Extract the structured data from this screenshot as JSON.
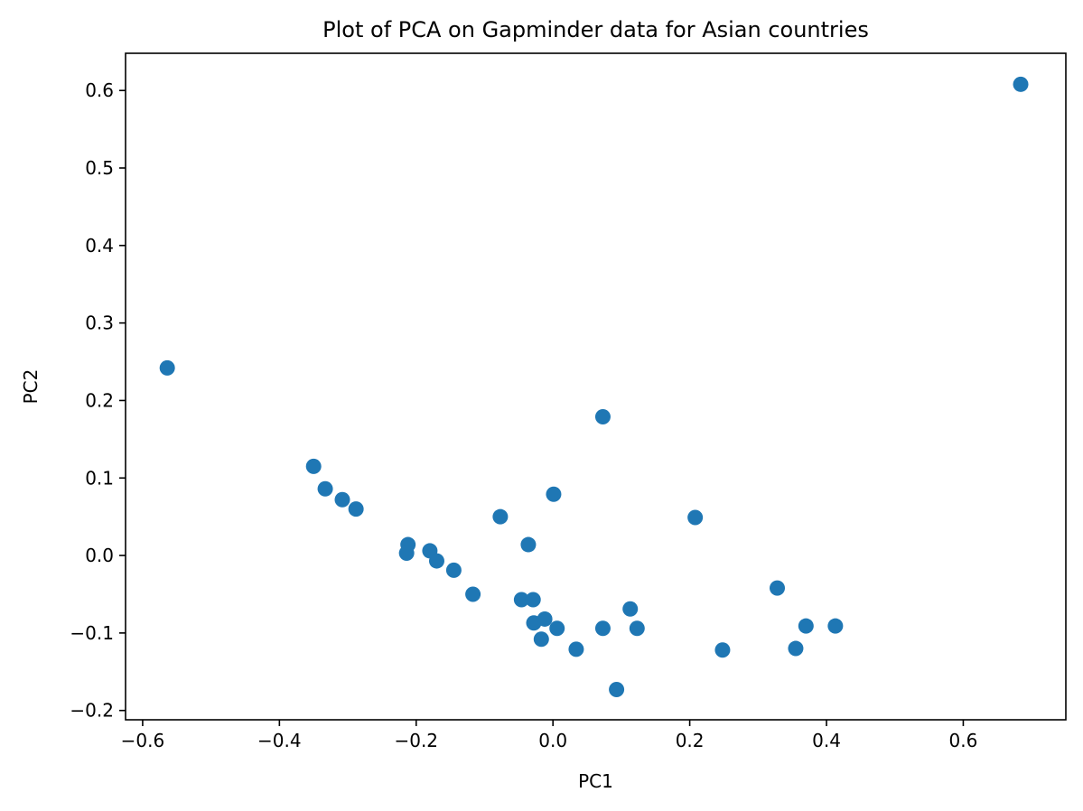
{
  "chart_data": {
    "type": "scatter",
    "title": "Plot of PCA on Gapminder data for Asian countries",
    "xlabel": "PC1",
    "ylabel": "PC2",
    "xlim": [
      -0.625,
      0.75
    ],
    "ylim": [
      -0.212,
      0.648
    ],
    "xticks": [
      -0.6,
      -0.4,
      -0.2,
      0.0,
      0.2,
      0.4,
      0.6
    ],
    "xtick_labels": [
      "−0.6",
      "−0.4",
      "−0.2",
      "0.0",
      "0.2",
      "0.4",
      "0.6"
    ],
    "yticks": [
      -0.2,
      -0.1,
      0.0,
      0.1,
      0.2,
      0.3,
      0.4,
      0.5,
      0.6
    ],
    "ytick_labels": [
      "−0.2",
      "−0.1",
      "0.0",
      "0.1",
      "0.2",
      "0.3",
      "0.4",
      "0.5",
      "0.6"
    ],
    "grid": false,
    "legend": "none",
    "marker_color": "#1f77b4",
    "points": [
      {
        "x": -0.564,
        "y": 0.242
      },
      {
        "x": -0.35,
        "y": 0.115
      },
      {
        "x": -0.333,
        "y": 0.086
      },
      {
        "x": -0.308,
        "y": 0.072
      },
      {
        "x": -0.288,
        "y": 0.06
      },
      {
        "x": -0.212,
        "y": 0.014
      },
      {
        "x": -0.214,
        "y": 0.003
      },
      {
        "x": -0.18,
        "y": 0.006
      },
      {
        "x": -0.17,
        "y": -0.007
      },
      {
        "x": -0.145,
        "y": -0.019
      },
      {
        "x": -0.117,
        "y": -0.05
      },
      {
        "x": -0.077,
        "y": 0.05
      },
      {
        "x": -0.046,
        "y": -0.057
      },
      {
        "x": -0.036,
        "y": 0.014
      },
      {
        "x": -0.029,
        "y": -0.057
      },
      {
        "x": -0.028,
        "y": -0.087
      },
      {
        "x": -0.017,
        "y": -0.108
      },
      {
        "x": -0.012,
        "y": -0.082
      },
      {
        "x": 0.001,
        "y": 0.079
      },
      {
        "x": 0.006,
        "y": -0.094
      },
      {
        "x": 0.034,
        "y": -0.121
      },
      {
        "x": 0.073,
        "y": 0.179
      },
      {
        "x": 0.073,
        "y": -0.094
      },
      {
        "x": 0.093,
        "y": -0.173
      },
      {
        "x": 0.113,
        "y": -0.069
      },
      {
        "x": 0.123,
        "y": -0.094
      },
      {
        "x": 0.208,
        "y": 0.049
      },
      {
        "x": 0.248,
        "y": -0.122
      },
      {
        "x": 0.328,
        "y": -0.042
      },
      {
        "x": 0.355,
        "y": -0.12
      },
      {
        "x": 0.37,
        "y": -0.091
      },
      {
        "x": 0.413,
        "y": -0.091
      },
      {
        "x": 0.684,
        "y": 0.608
      }
    ]
  }
}
